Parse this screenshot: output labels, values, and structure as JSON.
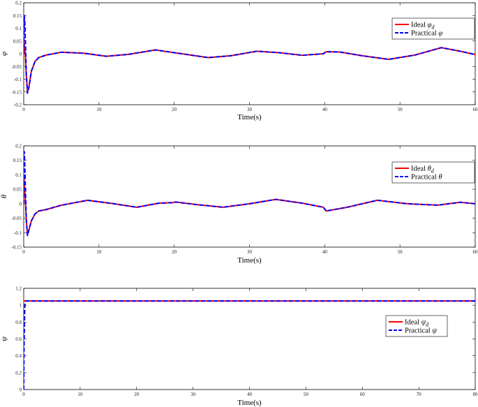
{
  "chart_data": [
    {
      "type": "line",
      "ylabel": "φ",
      "xlabel": "Time(s)",
      "xlim": [
        0,
        60
      ],
      "ylim": [
        -0.2,
        0.2
      ],
      "xticks": [
        0,
        10,
        20,
        30,
        40,
        50,
        60
      ],
      "yticks": [
        -0.2,
        -0.15,
        -0.1,
        -0.05,
        0,
        0.05,
        0.1,
        0.15,
        0.2
      ],
      "legend_position": "top-right",
      "series": [
        {
          "name": "Ideal φd",
          "color": "#ff0000",
          "dash": "solid",
          "x": [
            0,
            0.2,
            0.35,
            0.5,
            0.7,
            1.0,
            1.5,
            2,
            3,
            5,
            8,
            11,
            14,
            17.5,
            21,
            24.5,
            27.5,
            31,
            34,
            37,
            39.8,
            40.2,
            42,
            45,
            48.5,
            52,
            55.5,
            58,
            60
          ],
          "y": [
            0.05,
            0.0,
            -0.09,
            -0.15,
            -0.13,
            -0.07,
            -0.03,
            -0.015,
            -0.005,
            0.006,
            0.002,
            -0.01,
            -0.002,
            0.015,
            0.0,
            -0.015,
            -0.008,
            0.01,
            0.004,
            -0.006,
            0.0,
            0.008,
            0.007,
            -0.008,
            -0.022,
            -0.005,
            0.024,
            0.01,
            -0.003
          ]
        },
        {
          "name": "Practical φ",
          "color": "#0000ff",
          "dash": "dashed",
          "x": [
            0,
            0.08,
            0.15,
            0.25,
            0.35,
            0.5,
            0.7,
            1.0,
            1.5,
            2,
            3,
            5,
            8,
            11,
            14,
            17.5,
            21,
            24.5,
            27.5,
            31,
            34,
            37,
            39.8,
            40.2,
            42,
            45,
            48.5,
            52,
            55.5,
            58,
            60
          ],
          "y": [
            0.0,
            0.15,
            0.12,
            0.02,
            -0.08,
            -0.155,
            -0.13,
            -0.07,
            -0.03,
            -0.015,
            -0.005,
            0.006,
            0.002,
            -0.01,
            -0.002,
            0.015,
            0.0,
            -0.015,
            -0.008,
            0.01,
            0.004,
            -0.006,
            0.0,
            0.008,
            0.007,
            -0.008,
            -0.022,
            -0.005,
            0.024,
            0.01,
            -0.003
          ]
        }
      ]
    },
    {
      "type": "line",
      "ylabel": "θ",
      "xlabel": "Time(s)",
      "xlim": [
        0,
        60
      ],
      "ylim": [
        -0.15,
        0.2
      ],
      "xticks": [
        0,
        10,
        20,
        30,
        40,
        50,
        60
      ],
      "yticks": [
        -0.15,
        -0.1,
        -0.05,
        0,
        0.05,
        0.1,
        0.15,
        0.2
      ],
      "legend_position": "top-right",
      "series": [
        {
          "name": "Ideal θd",
          "color": "#ff0000",
          "dash": "solid",
          "x": [
            0,
            0.2,
            0.35,
            0.5,
            0.7,
            1.0,
            1.5,
            2,
            3,
            5,
            8.5,
            12,
            15,
            18,
            19.8,
            20.2,
            23,
            26.5,
            30,
            33.5,
            37,
            39.8,
            40.2,
            43,
            47,
            51,
            55,
            58,
            60
          ],
          "y": [
            0.1,
            0.02,
            -0.06,
            -0.105,
            -0.09,
            -0.06,
            -0.035,
            -0.025,
            -0.02,
            -0.005,
            0.012,
            0.0,
            -0.012,
            0.002,
            0.004,
            0.006,
            -0.003,
            -0.012,
            0.0,
            0.015,
            0.002,
            -0.012,
            -0.025,
            -0.012,
            0.012,
            0.0,
            -0.005,
            0.005,
            0.0
          ]
        },
        {
          "name": "Practical θ",
          "color": "#0000ff",
          "dash": "dashed",
          "x": [
            0,
            0.08,
            0.15,
            0.25,
            0.35,
            0.5,
            0.7,
            1.0,
            1.5,
            2,
            3,
            5,
            8.5,
            12,
            15,
            18,
            19.8,
            20.2,
            23,
            26.5,
            30,
            33.5,
            37,
            39.8,
            40.2,
            43,
            47,
            51,
            55,
            58,
            60
          ],
          "y": [
            0.0,
            0.18,
            0.13,
            0.03,
            -0.06,
            -0.11,
            -0.09,
            -0.06,
            -0.035,
            -0.025,
            -0.02,
            -0.005,
            0.012,
            0.0,
            -0.012,
            0.002,
            0.004,
            0.006,
            -0.003,
            -0.012,
            0.0,
            0.015,
            0.002,
            -0.012,
            -0.025,
            -0.012,
            0.012,
            0.0,
            -0.005,
            0.005,
            0.0
          ]
        }
      ]
    },
    {
      "type": "line",
      "ylabel": "ψ",
      "xlabel": "Time(s)",
      "xlim": [
        0,
        80
      ],
      "ylim": [
        0,
        1.2
      ],
      "xticks": [
        0,
        10,
        20,
        30,
        40,
        50,
        60,
        70,
        80
      ],
      "yticks": [
        0,
        0.2,
        0.4,
        0.6,
        0.8,
        1,
        1.2
      ],
      "legend_position": "right",
      "series": [
        {
          "name": "Ideal ψd",
          "color": "#ff0000",
          "dash": "solid",
          "x": [
            0,
            80
          ],
          "y": [
            1.05,
            1.05
          ]
        },
        {
          "name": "Practical ψ",
          "color": "#0000ff",
          "dash": "dashed",
          "x": [
            0,
            0.05,
            0.2,
            0.4,
            80
          ],
          "y": [
            0,
            0.5,
            1.0,
            1.05,
            1.05
          ]
        }
      ]
    }
  ]
}
